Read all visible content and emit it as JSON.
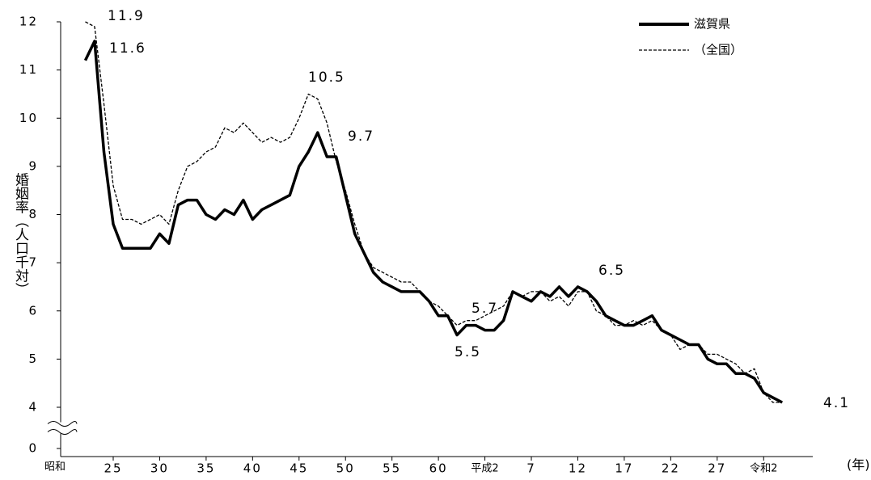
{
  "chart_data": {
    "type": "line",
    "y_label": "婚姻率（人口千対）",
    "x_label": "(年)",
    "x_era_label": "昭和",
    "x": [
      1947,
      1948,
      1949,
      1950,
      1951,
      1952,
      1953,
      1954,
      1955,
      1956,
      1957,
      1958,
      1959,
      1960,
      1961,
      1962,
      1963,
      1964,
      1965,
      1966,
      1967,
      1968,
      1969,
      1970,
      1971,
      1972,
      1973,
      1974,
      1975,
      1976,
      1977,
      1978,
      1979,
      1980,
      1981,
      1982,
      1983,
      1984,
      1985,
      1986,
      1987,
      1988,
      1989,
      1990,
      1991,
      1992,
      1993,
      1994,
      1995,
      1996,
      1997,
      1998,
      1999,
      2000,
      2001,
      2002,
      2003,
      2004,
      2005,
      2006,
      2007,
      2008,
      2009,
      2010,
      2011,
      2012,
      2013,
      2014,
      2015,
      2016,
      2017,
      2018,
      2019,
      2020,
      2021,
      2022
    ],
    "series": [
      {
        "name": "滋賀県",
        "color": "#000000",
        "style": "solid",
        "values": [
          11.2,
          11.6,
          9.3,
          7.8,
          7.3,
          7.3,
          7.3,
          7.3,
          7.6,
          7.4,
          8.2,
          8.3,
          8.3,
          8.0,
          7.9,
          8.1,
          8.0,
          8.3,
          7.9,
          8.1,
          8.2,
          8.3,
          8.4,
          9.0,
          9.3,
          9.7,
          9.2,
          9.2,
          8.4,
          7.6,
          7.2,
          6.8,
          6.6,
          6.5,
          6.4,
          6.4,
          6.4,
          6.2,
          5.9,
          5.9,
          5.5,
          5.7,
          5.7,
          5.6,
          5.6,
          5.8,
          6.4,
          6.3,
          6.2,
          6.4,
          6.3,
          6.5,
          6.3,
          6.5,
          6.4,
          6.2,
          5.9,
          5.8,
          5.7,
          5.7,
          5.8,
          5.9,
          5.6,
          5.5,
          5.4,
          5.3,
          5.3,
          5.0,
          4.9,
          4.9,
          4.7,
          4.7,
          4.6,
          4.3,
          4.2,
          4.1
        ]
      },
      {
        "name": "（全国）",
        "color": "#000000",
        "style": "dashed",
        "values": [
          12.0,
          11.9,
          10.3,
          8.6,
          7.9,
          7.9,
          7.8,
          7.9,
          8.0,
          7.8,
          8.5,
          9.0,
          9.1,
          9.3,
          9.4,
          9.8,
          9.7,
          9.9,
          9.7,
          9.5,
          9.6,
          9.5,
          9.6,
          10.0,
          10.5,
          10.4,
          9.9,
          9.1,
          8.5,
          7.8,
          7.2,
          6.9,
          6.8,
          6.7,
          6.6,
          6.6,
          6.4,
          6.2,
          6.1,
          5.9,
          5.7,
          5.8,
          5.8,
          5.9,
          6.0,
          6.1,
          6.4,
          6.3,
          6.4,
          6.4,
          6.2,
          6.3,
          6.1,
          6.4,
          6.4,
          6.0,
          5.9,
          5.7,
          5.7,
          5.8,
          5.7,
          5.8,
          5.6,
          5.5,
          5.2,
          5.3,
          5.3,
          5.1,
          5.1,
          5.0,
          4.9,
          4.7,
          4.8,
          4.3,
          4.1,
          4.1
        ]
      }
    ],
    "annotations": [
      "11.9",
      "11.6",
      "10.5",
      "9.7",
      "5.7",
      "5.5",
      "6.5",
      "4.1"
    ],
    "ylim": [
      0,
      12
    ],
    "yticks": [
      0,
      4,
      5,
      6,
      7,
      8,
      9,
      10,
      11,
      12
    ],
    "y_break": true,
    "xlim": [
      1945,
      2023
    ],
    "xticks": [
      {
        "value": 1950,
        "label": "25"
      },
      {
        "value": 1955,
        "label": "30"
      },
      {
        "value": 1960,
        "label": "35"
      },
      {
        "value": 1965,
        "label": "40"
      },
      {
        "value": 1970,
        "label": "45"
      },
      {
        "value": 1975,
        "label": "50"
      },
      {
        "value": 1980,
        "label": "55"
      },
      {
        "value": 1985,
        "label": "60"
      },
      {
        "value": 1990,
        "label": "平成2"
      },
      {
        "value": 1995,
        "label": "7"
      },
      {
        "value": 2000,
        "label": "12"
      },
      {
        "value": 2005,
        "label": "17"
      },
      {
        "value": 2010,
        "label": "22"
      },
      {
        "value": 2015,
        "label": "27"
      },
      {
        "value": 2020,
        "label": "令和2"
      }
    ],
    "legend": "top-right"
  }
}
